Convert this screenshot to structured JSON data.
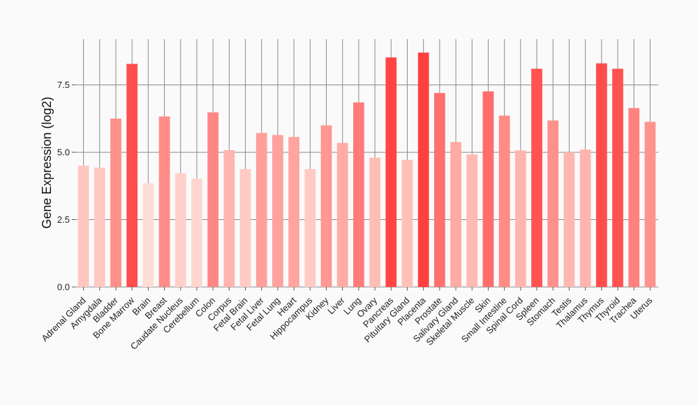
{
  "chart_data": {
    "type": "bar",
    "title": "",
    "xlabel": "",
    "ylabel": "Gene Expression (log2)",
    "ylim": [
      0,
      9.2
    ],
    "yticks": [
      0.0,
      2.5,
      5.0,
      7.5
    ],
    "ytick_labels": [
      "0.0",
      "2.5",
      "5.0",
      "7.5"
    ],
    "grid": "vertical and horizontal major lines",
    "legend": "none",
    "color_low": "#ffdcd4",
    "color_high": "#ff4040",
    "categories": [
      "Adrenal Gland",
      "Amygdala",
      "Bladder",
      "Bone Marrow",
      "Brain",
      "Breast",
      "Caudate Nucleus",
      "Cerebellum",
      "Colon",
      "Corpus",
      "Fetal Brain",
      "Fetal Liver",
      "Fetal Lung",
      "Heart",
      "Hippocampus",
      "Kidney",
      "Liver",
      "Lung",
      "Ovary",
      "Pancreas",
      "Pituitary Gland",
      "Placenta",
      "Prostate",
      "Salivary Gland",
      "Skeletal Muscle",
      "Skin",
      "Small Intestine",
      "Spinal Cord",
      "Spleen",
      "Stomach",
      "Testis",
      "Thalamus",
      "Thymus",
      "Thyroid",
      "Trachea",
      "Uterus"
    ],
    "values": [
      4.5,
      4.43,
      6.25,
      8.28,
      3.85,
      6.33,
      4.22,
      4.02,
      6.48,
      5.08,
      4.38,
      5.72,
      5.64,
      5.57,
      4.38,
      6.0,
      5.35,
      6.85,
      4.8,
      8.52,
      4.72,
      8.7,
      7.2,
      5.38,
      4.92,
      7.26,
      6.36,
      5.07,
      8.1,
      6.18,
      5.0,
      5.1,
      8.3,
      8.1,
      6.64,
      6.13
    ]
  }
}
